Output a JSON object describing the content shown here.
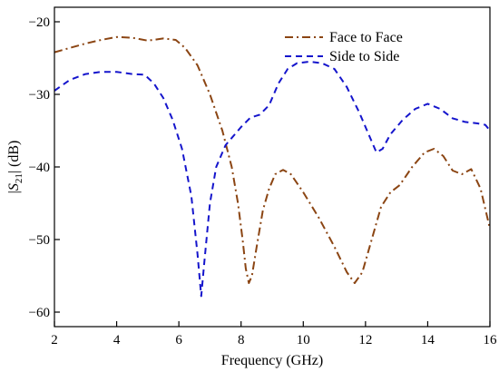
{
  "chart_data": {
    "type": "line",
    "title": "",
    "xlabel": "Frequency (GHz)",
    "ylabel_prefix": "|",
    "ylabel_var": "S",
    "ylabel_sub": "21",
    "ylabel_suffix": "| (dB)",
    "xlim": [
      2,
      16
    ],
    "ylim": [
      -62,
      -18
    ],
    "xticks": [
      2,
      4,
      6,
      8,
      10,
      12,
      14,
      16
    ],
    "yticks": [
      -60,
      -50,
      -40,
      -30,
      -20
    ],
    "grid": false,
    "legend_position": "top-right",
    "series": [
      {
        "name": "Face to Face",
        "color": "#8B4513",
        "style": "dash-dot",
        "points": [
          [
            2.0,
            -24.2
          ],
          [
            2.5,
            -23.6
          ],
          [
            3.0,
            -23.0
          ],
          [
            3.5,
            -22.5
          ],
          [
            4.0,
            -22.1
          ],
          [
            4.5,
            -22.2
          ],
          [
            5.0,
            -22.6
          ],
          [
            5.5,
            -22.3
          ],
          [
            5.9,
            -22.5
          ],
          [
            6.2,
            -23.6
          ],
          [
            6.6,
            -26.0
          ],
          [
            7.0,
            -30.0
          ],
          [
            7.4,
            -35.0
          ],
          [
            7.7,
            -40.0
          ],
          [
            7.9,
            -45.0
          ],
          [
            8.05,
            -50.0
          ],
          [
            8.15,
            -54.0
          ],
          [
            8.25,
            -56.0
          ],
          [
            8.35,
            -55.0
          ],
          [
            8.5,
            -51.0
          ],
          [
            8.7,
            -46.0
          ],
          [
            8.9,
            -43.0
          ],
          [
            9.1,
            -41.0
          ],
          [
            9.35,
            -40.4
          ],
          [
            9.6,
            -41.0
          ],
          [
            10.0,
            -43.5
          ],
          [
            10.5,
            -47.0
          ],
          [
            11.0,
            -51.0
          ],
          [
            11.4,
            -54.5
          ],
          [
            11.65,
            -56.0
          ],
          [
            11.9,
            -54.5
          ],
          [
            12.2,
            -50.0
          ],
          [
            12.5,
            -45.5
          ],
          [
            12.8,
            -43.5
          ],
          [
            13.1,
            -42.5
          ],
          [
            13.5,
            -40.0
          ],
          [
            13.9,
            -38.0
          ],
          [
            14.2,
            -37.5
          ],
          [
            14.5,
            -38.5
          ],
          [
            14.8,
            -40.5
          ],
          [
            15.1,
            -41.0
          ],
          [
            15.4,
            -40.3
          ],
          [
            15.7,
            -43.0
          ],
          [
            16.0,
            -48.5
          ]
        ]
      },
      {
        "name": "Side to Side",
        "color": "#1515cc",
        "style": "dashed",
        "points": [
          [
            2.0,
            -29.5
          ],
          [
            2.5,
            -28.0
          ],
          [
            3.0,
            -27.2
          ],
          [
            3.5,
            -26.9
          ],
          [
            4.0,
            -26.9
          ],
          [
            4.5,
            -27.2
          ],
          [
            4.9,
            -27.3
          ],
          [
            5.2,
            -28.5
          ],
          [
            5.5,
            -30.5
          ],
          [
            5.8,
            -33.5
          ],
          [
            6.1,
            -37.5
          ],
          [
            6.4,
            -44.0
          ],
          [
            6.6,
            -52.0
          ],
          [
            6.72,
            -57.8
          ],
          [
            6.82,
            -53.0
          ],
          [
            7.0,
            -45.0
          ],
          [
            7.2,
            -40.0
          ],
          [
            7.5,
            -37.0
          ],
          [
            7.8,
            -35.5
          ],
          [
            8.0,
            -34.5
          ],
          [
            8.3,
            -33.2
          ],
          [
            8.6,
            -32.8
          ],
          [
            8.9,
            -31.5
          ],
          [
            9.2,
            -28.5
          ],
          [
            9.5,
            -26.5
          ],
          [
            9.8,
            -25.7
          ],
          [
            10.2,
            -25.5
          ],
          [
            10.6,
            -25.7
          ],
          [
            11.0,
            -26.5
          ],
          [
            11.4,
            -29.0
          ],
          [
            11.8,
            -32.5
          ],
          [
            12.1,
            -35.5
          ],
          [
            12.35,
            -38.0
          ],
          [
            12.55,
            -37.5
          ],
          [
            12.8,
            -35.5
          ],
          [
            13.2,
            -33.5
          ],
          [
            13.6,
            -32.0
          ],
          [
            14.0,
            -31.3
          ],
          [
            14.4,
            -32.0
          ],
          [
            14.8,
            -33.3
          ],
          [
            15.2,
            -33.8
          ],
          [
            15.6,
            -34.0
          ],
          [
            15.85,
            -34.2
          ],
          [
            16.0,
            -35.0
          ]
        ]
      }
    ]
  }
}
